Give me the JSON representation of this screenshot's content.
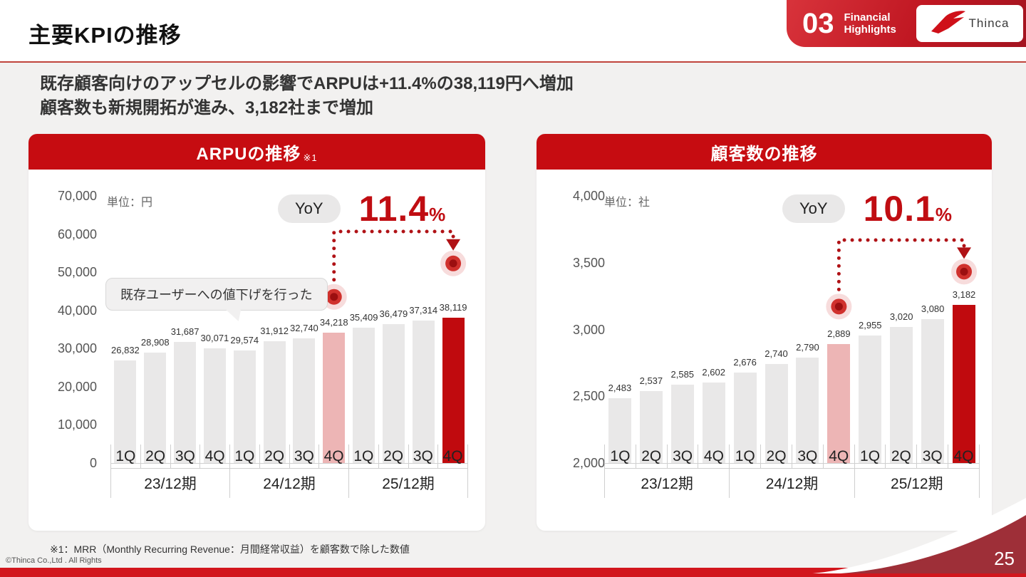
{
  "header": {
    "title": "主要KPIの推移",
    "section_number": "03",
    "section_label": "Financial Highlights",
    "logo_text": "Thinca"
  },
  "subtitle": {
    "line1": "既存顧客向けのアップセルの影響でARPUは+11.4%の38,119円へ増加",
    "line2": "顧客数も新規開拓が進み、3,182社まで増加"
  },
  "colors": {
    "accent_red": "#c60c11",
    "bar_gray": "#e9e8e8",
    "bar_pink": "#edb5b5",
    "bar_red": "#c00a0e",
    "swoosh_maroon": "#9e2f38",
    "bottom_strip_red": "#d2161d"
  },
  "chart_data": [
    {
      "type": "bar",
      "title": "ARPUの推移",
      "title_note": "※1",
      "unit": "単位：円",
      "yoy_label": "YoY",
      "yoy_value": "11.4",
      "yoy_unit": "%",
      "callout": "既存ユーザーへの値下げを行った",
      "categories": [
        "1Q",
        "2Q",
        "3Q",
        "4Q",
        "1Q",
        "2Q",
        "3Q",
        "4Q",
        "1Q",
        "2Q",
        "3Q",
        "4Q"
      ],
      "year_groups": [
        "23/12期",
        "24/12期",
        "25/12期"
      ],
      "values": [
        26832,
        28908,
        31687,
        30071,
        29574,
        31912,
        32740,
        34218,
        35409,
        36479,
        37314,
        38119
      ],
      "labels": [
        "26,832",
        "28,908",
        "31,687",
        "30,071",
        "29,574",
        "31,912",
        "32,740",
        "34,218",
        "35,409",
        "36,479",
        "37,314",
        "38,119"
      ],
      "highlight": {
        "pink_index": 7,
        "red_index": 11
      },
      "connector": {
        "from_index": 7,
        "to_index": 11
      },
      "ylim": [
        0,
        70000
      ],
      "yticks": [
        "70,000",
        "60,000",
        "50,000",
        "40,000",
        "30,000",
        "20,000",
        "10,000",
        "0"
      ],
      "grid": false,
      "legend": "none"
    },
    {
      "type": "bar",
      "title": "顧客数の推移",
      "title_note": "",
      "unit": "単位：社",
      "yoy_label": "YoY",
      "yoy_value": "10.1",
      "yoy_unit": "%",
      "callout": "",
      "categories": [
        "1Q",
        "2Q",
        "3Q",
        "4Q",
        "1Q",
        "2Q",
        "3Q",
        "4Q",
        "1Q",
        "2Q",
        "3Q",
        "4Q"
      ],
      "year_groups": [
        "23/12期",
        "24/12期",
        "25/12期"
      ],
      "values": [
        2483,
        2537,
        2585,
        2602,
        2676,
        2740,
        2790,
        2889,
        2955,
        3020,
        3080,
        3182
      ],
      "labels": [
        "2,483",
        "2,537",
        "2,585",
        "2,602",
        "2,676",
        "2,740",
        "2,790",
        "2,889",
        "2,955",
        "3,020",
        "3,080",
        "3,182"
      ],
      "highlight": {
        "pink_index": 7,
        "red_index": 11
      },
      "connector": {
        "from_index": 7,
        "to_index": 11
      },
      "ylim": [
        2000,
        4000
      ],
      "yticks": [
        "4,000",
        "3,500",
        "3,000",
        "2,500",
        "2,000"
      ],
      "grid": false,
      "legend": "none"
    }
  ],
  "footnote": "※1：MRR（Monthly Recurring Revenue：月間経常収益）を顧客数で除した数値",
  "copyright": "©Thinca Co.,Ltd . All Rights",
  "page_number": "25"
}
